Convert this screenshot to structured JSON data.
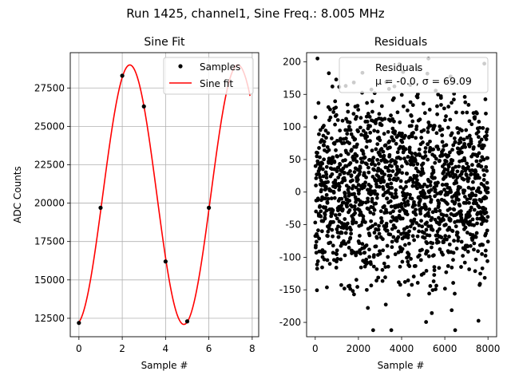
{
  "suptitle": "Run 1425, channel1, Sine Freq.: 8.005 MHz",
  "chart_data": [
    {
      "type": "line",
      "title": "Sine Fit",
      "xlabel": "Sample #",
      "ylabel": "ADC Counts",
      "xlim": [
        -0.4,
        8.3
      ],
      "ylim": [
        11300,
        29800
      ],
      "xticks": [
        0,
        2,
        4,
        6,
        8
      ],
      "yticks": [
        12500,
        15000,
        17500,
        20000,
        22500,
        25000,
        27500
      ],
      "grid": true,
      "legend_position": "top-right",
      "colors": {
        "samples": "#000000",
        "fit": "#ff0000",
        "grid": "#b0b0b0"
      },
      "series": [
        {
          "name": "Samples",
          "style": "scatter",
          "x": [
            0,
            1,
            2,
            3,
            4,
            5,
            6
          ],
          "y": [
            12200,
            19700,
            28300,
            26300,
            16200,
            12300,
            19700
          ]
        },
        {
          "name": "Sine fit",
          "style": "line",
          "model": {
            "offset": 20550,
            "amplitude": 8450,
            "period": 4.99,
            "peak_at": 2.35
          },
          "x_range": [
            0,
            7.9
          ]
        }
      ]
    },
    {
      "type": "scatter",
      "title": "Residuals",
      "xlabel": "Sample #",
      "ylabel": "",
      "xlim": [
        -400,
        8400
      ],
      "ylim": [
        -222,
        214
      ],
      "xticks": [
        0,
        2000,
        4000,
        6000,
        8000
      ],
      "yticks": [
        -200,
        -150,
        -100,
        -50,
        0,
        50,
        100,
        150,
        200
      ],
      "grid": false,
      "legend_position": "top-right",
      "legend_label": "Residuals",
      "legend_stats": "μ = -0.0, σ = 69.09",
      "stats": {
        "mean": -0.0,
        "std": 69.09
      },
      "n_points": 8000,
      "x_range": [
        0,
        8000
      ],
      "color": "#000000"
    }
  ]
}
